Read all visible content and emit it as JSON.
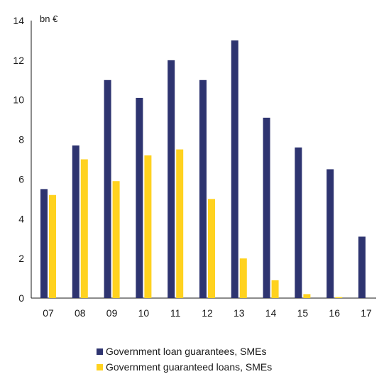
{
  "chart_data": {
    "type": "bar",
    "unit_label": "bn €",
    "categories": [
      "07",
      "08",
      "09",
      "10",
      "11",
      "12",
      "13",
      "14",
      "15",
      "16",
      "17"
    ],
    "series": [
      {
        "name": "Government loan guarantees, SMEs",
        "color": "#2e3470",
        "values": [
          5.5,
          7.7,
          11.0,
          10.1,
          12.0,
          11.0,
          13.0,
          9.1,
          7.6,
          6.5,
          3.1
        ]
      },
      {
        "name": "Government guaranteed loans, SMEs",
        "color": "#ffd21f",
        "values": [
          5.2,
          7.0,
          5.9,
          7.2,
          7.5,
          5.0,
          2.0,
          0.9,
          0.2,
          0.05,
          null
        ]
      }
    ],
    "ylim": [
      0,
      14
    ],
    "yticks": [
      0,
      2,
      4,
      6,
      8,
      10,
      12,
      14
    ],
    "grid": false,
    "legend_position": "bottom"
  }
}
